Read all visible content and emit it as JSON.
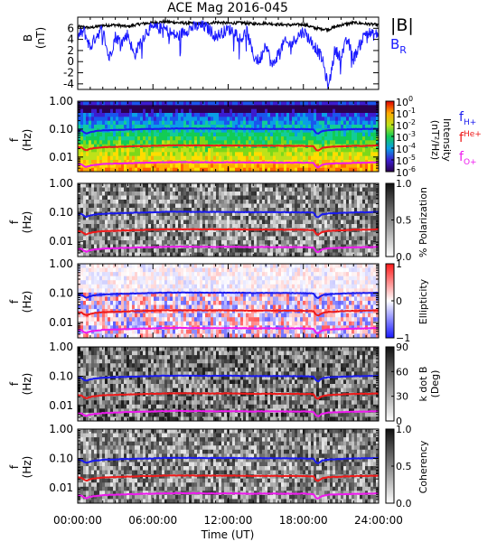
{
  "title": "ACE Mag 2016-045",
  "xlabel": "Time (UT)",
  "xticks": [
    "00:00:00",
    "06:00:00",
    "12:00:00",
    "18:00:00",
    "24:00:00"
  ],
  "colors": {
    "B_total": "#000000",
    "B_R": "#1a1aff",
    "f_H": "#1a1aee",
    "f_He": "#ee1a1a",
    "f_O": "#ee1aee",
    "axes": "#000000",
    "background": "#ffffff"
  },
  "chart_data": [
    {
      "type": "line",
      "panel": "B",
      "ylabel": "B",
      "yunit": "(nT)",
      "ylim": [
        -5,
        8
      ],
      "yticks": [
        "6",
        "4",
        "2",
        "0",
        "-2",
        "-4"
      ],
      "xlim": [
        0,
        24
      ],
      "legend": [
        "|B|",
        "B_R"
      ],
      "legend_text": {
        "babs": "|B|",
        "br_base": "B",
        "br_sub": "R"
      },
      "series": [
        {
          "name": "|B|",
          "x": [
            0,
            1,
            2,
            3,
            4,
            5,
            6,
            7,
            8,
            9,
            10,
            11,
            12,
            13,
            14,
            15,
            16,
            17,
            18,
            19,
            20,
            21,
            22,
            23,
            24
          ],
          "y": [
            6.3,
            6.1,
            6.5,
            6.6,
            6.3,
            6.8,
            7.0,
            7.2,
            7.0,
            6.9,
            6.8,
            7.1,
            6.9,
            7.0,
            6.8,
            6.9,
            6.7,
            6.6,
            6.7,
            6.0,
            5.8,
            6.6,
            7.0,
            6.8,
            6.6
          ]
        },
        {
          "name": "B_R",
          "x": [
            0,
            0.5,
            1,
            1.5,
            2,
            2.5,
            3,
            3.5,
            4,
            4.5,
            5,
            5.5,
            6,
            6.5,
            7,
            7.5,
            8,
            8.5,
            9,
            9.5,
            10,
            10.5,
            11,
            11.5,
            12,
            12.5,
            13,
            13.5,
            14,
            14.5,
            15,
            15.5,
            16,
            16.5,
            17,
            17.5,
            18,
            18.5,
            19,
            19.5,
            20,
            20.5,
            21,
            21.5,
            22,
            22.5,
            23,
            23.5,
            24
          ],
          "y": [
            4.5,
            5.5,
            2.5,
            4.8,
            5.8,
            0.5,
            4.5,
            3.5,
            5.0,
            1.0,
            3.5,
            5.5,
            6.0,
            6.0,
            5.8,
            5.0,
            4.5,
            5.5,
            6.0,
            6.3,
            6.4,
            5.8,
            4.5,
            5.2,
            5.8,
            5.5,
            4.0,
            5.5,
            1.0,
            0.0,
            3.5,
            -1.0,
            1.5,
            3.5,
            3.0,
            4.5,
            5.5,
            4.0,
            2.5,
            0.5,
            -4.8,
            2.0,
            1.0,
            4.0,
            0.5,
            3.0,
            5.5,
            4.8,
            5.0
          ]
        }
      ]
    },
    {
      "type": "heatmap",
      "panel": "intensity",
      "ylabel": "f",
      "yunit": "(Hz)",
      "ylim": [
        0.003,
        1
      ],
      "yscale": "log",
      "yticks": [
        "1.00",
        "0.10",
        "0.01"
      ],
      "colorbar": {
        "label": "Intensity",
        "unit": "(nT²/Hz)",
        "scale": "log",
        "range": [
          1e-06,
          1
        ],
        "tick_labels": [
          [
            "10",
            "0"
          ],
          [
            "10",
            "-1"
          ],
          [
            "10",
            "-2"
          ],
          [
            "10",
            "-3"
          ],
          [
            "10",
            "-4"
          ],
          [
            "10",
            "-5"
          ],
          [
            "10",
            "-6"
          ]
        ],
        "colormap": "rainbow"
      },
      "legend": [
        "f_H+",
        "f_He+",
        "f_O+"
      ],
      "legend_text": {
        "h": {
          "base": "f",
          "sub": "H+"
        },
        "he": {
          "base": "f",
          "sup": "He+"
        },
        "o": {
          "base": "f",
          "sub": "O+"
        }
      }
    },
    {
      "type": "heatmap",
      "panel": "polarization",
      "ylabel": "f",
      "yunit": "(Hz)",
      "ylim": [
        0.003,
        1
      ],
      "yscale": "log",
      "yticks": [
        "1.00",
        "0.10",
        "0.01"
      ],
      "colorbar": {
        "label": "% Polarization",
        "range": [
          0,
          1
        ],
        "tick_labels": [
          "1.0",
          "0.5",
          "0.0"
        ],
        "colormap": "gray"
      }
    },
    {
      "type": "heatmap",
      "panel": "ellipticity",
      "ylabel": "f",
      "yunit": "(Hz)",
      "ylim": [
        0.003,
        1
      ],
      "yscale": "log",
      "yticks": [
        "1.00",
        "0.10",
        "0.01"
      ],
      "colorbar": {
        "label": "Ellipticity",
        "range": [
          -1,
          1
        ],
        "tick_labels": [
          "1",
          "0",
          "−1"
        ],
        "colormap": "blue-white-red"
      }
    },
    {
      "type": "heatmap",
      "panel": "kdotb",
      "ylabel": "f",
      "yunit": "(Hz)",
      "ylim": [
        0.003,
        1
      ],
      "yscale": "log",
      "yticks": [
        "1.00",
        "0.10",
        "0.01"
      ],
      "colorbar": {
        "label": "k dot B",
        "unit": "(Deg)",
        "range": [
          0,
          90
        ],
        "tick_labels": [
          "90",
          "60",
          "30",
          "0"
        ],
        "colormap": "gray"
      }
    },
    {
      "type": "heatmap",
      "panel": "coherency",
      "ylabel": "f",
      "yunit": "(Hz)",
      "ylim": [
        0.003,
        1
      ],
      "yscale": "log",
      "yticks": [
        "1.00",
        "0.10",
        "0.01"
      ],
      "colorbar": {
        "label": "Coherency",
        "range": [
          0,
          1
        ],
        "tick_labels": [
          "1.0",
          "0.5",
          "0.0"
        ],
        "colormap": "gray"
      }
    }
  ],
  "gyrofrequency_lines": {
    "x": [
      0,
      0.3,
      0.5,
      0.7,
      0.9,
      1.2,
      2,
      3,
      4,
      5,
      6,
      7,
      8,
      9,
      10,
      11,
      12,
      13,
      14,
      15,
      16,
      17,
      18,
      18.8,
      19.0,
      19.2,
      19.5,
      20,
      21,
      22,
      23,
      24
    ],
    "fH": [
      0.09,
      0.088,
      0.075,
      0.07,
      0.076,
      0.082,
      0.09,
      0.093,
      0.096,
      0.099,
      0.101,
      0.104,
      0.105,
      0.104,
      0.104,
      0.103,
      0.104,
      0.103,
      0.101,
      0.102,
      0.101,
      0.101,
      0.1,
      0.098,
      0.072,
      0.068,
      0.085,
      0.092,
      0.096,
      0.1,
      0.101,
      0.104
    ],
    "fHe": [
      0.0225,
      0.022,
      0.0188,
      0.0175,
      0.019,
      0.0205,
      0.0225,
      0.0232,
      0.024,
      0.0248,
      0.0252,
      0.026,
      0.0262,
      0.026,
      0.026,
      0.0258,
      0.026,
      0.0258,
      0.0252,
      0.0255,
      0.0252,
      0.0252,
      0.025,
      0.0245,
      0.018,
      0.017,
      0.0212,
      0.023,
      0.024,
      0.025,
      0.0252,
      0.026
    ],
    "fO": [
      0.0056,
      0.0055,
      0.0047,
      0.0044,
      0.0048,
      0.0051,
      0.0056,
      0.0058,
      0.006,
      0.0062,
      0.0063,
      0.0065,
      0.0066,
      0.0065,
      0.0065,
      0.0064,
      0.0065,
      0.0064,
      0.0063,
      0.0064,
      0.0063,
      0.0063,
      0.0063,
      0.0061,
      0.0045,
      0.0043,
      0.0053,
      0.0058,
      0.006,
      0.0062,
      0.0063,
      0.0065
    ]
  }
}
